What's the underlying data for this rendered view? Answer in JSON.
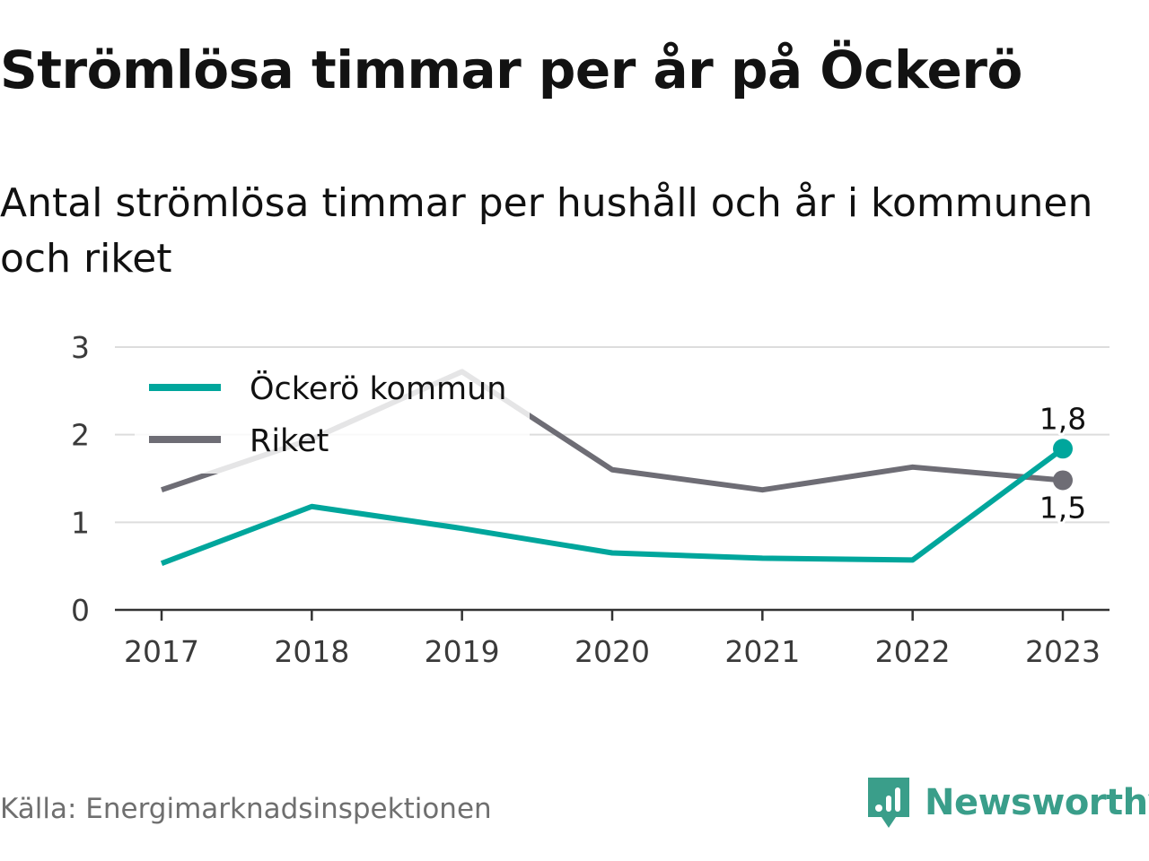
{
  "header": {
    "title": "Strömlösa timmar per år på Öckerö",
    "subtitle": "Antal strömlösa timmar per hushåll och år i kommunen och riket"
  },
  "chart_data": {
    "type": "line",
    "x": [
      "2017",
      "2018",
      "2019",
      "2020",
      "2021",
      "2022",
      "2023"
    ],
    "ylim": [
      0,
      3
    ],
    "yticks": [
      "0",
      "1",
      "2",
      "3"
    ],
    "grid": true,
    "legend_position": "top-left",
    "series": [
      {
        "name": "Öckerö kommun",
        "color": "#00a69c",
        "values": [
          0.53,
          1.18,
          0.93,
          0.65,
          0.59,
          0.57,
          1.84
        ],
        "end_label": "1,8"
      },
      {
        "name": "Riket",
        "color": "#6e6d75",
        "values": [
          1.37,
          1.95,
          2.72,
          1.6,
          1.37,
          1.63,
          1.48
        ],
        "end_label": "1,5"
      }
    ]
  },
  "footer": {
    "source": "Källa: Energimarknadsinspektionen",
    "brand": "Newsworthy",
    "brand_color": "#3a9e8a",
    "brand_icon": "newsworthy-logo-icon"
  }
}
